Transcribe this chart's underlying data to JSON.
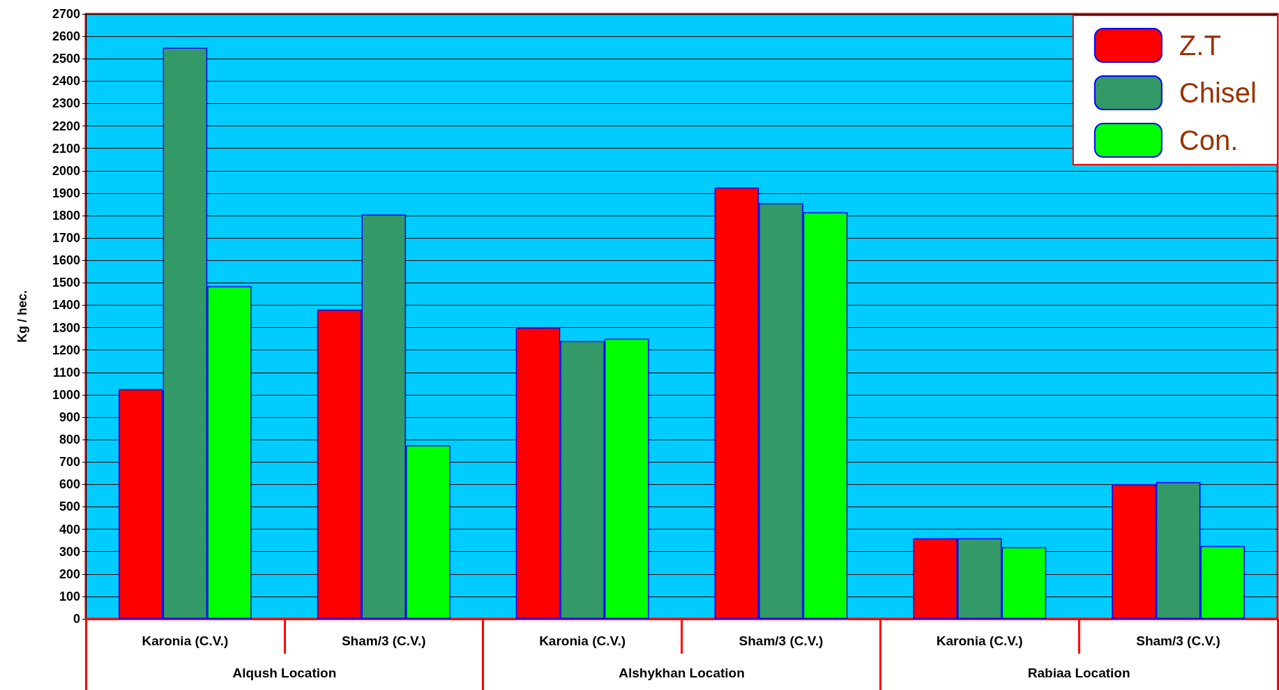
{
  "chart_data": {
    "type": "bar",
    "ylabel": "Kg / hec.",
    "categories": [
      "Karonia (C.V.)",
      "Sham/3 (C.V.)",
      "Karonia (C.V.)",
      "Sham/3 (C.V.)",
      "Karonia (C.V.)",
      "Sham/3 (C.V.)"
    ],
    "annotations": [
      "Alqush Location",
      "Alshykhan Location",
      "Rabiaa Location"
    ],
    "series": [
      {
        "name": "Z.T",
        "color": "#ff0000",
        "values": [
          1025,
          1380,
          1300,
          1925,
          360,
          600
        ]
      },
      {
        "name": "Chisel",
        "color": "#339966",
        "values": [
          2550,
          1805,
          1240,
          1855,
          360,
          610
        ]
      },
      {
        "name": "Con.",
        "color": "#00ff00",
        "values": [
          1485,
          775,
          1250,
          1815,
          320,
          325
        ]
      }
    ],
    "ylim": [
      0,
      2700
    ],
    "yticks": [
      0,
      100,
      200,
      300,
      400,
      500,
      600,
      700,
      800,
      900,
      1000,
      1100,
      1200,
      1300,
      1400,
      1500,
      1600,
      1700,
      1800,
      1900,
      2000,
      2100,
      2200,
      2300,
      2400,
      2500,
      2600,
      2700
    ],
    "grid": "y",
    "legend": "top right"
  }
}
